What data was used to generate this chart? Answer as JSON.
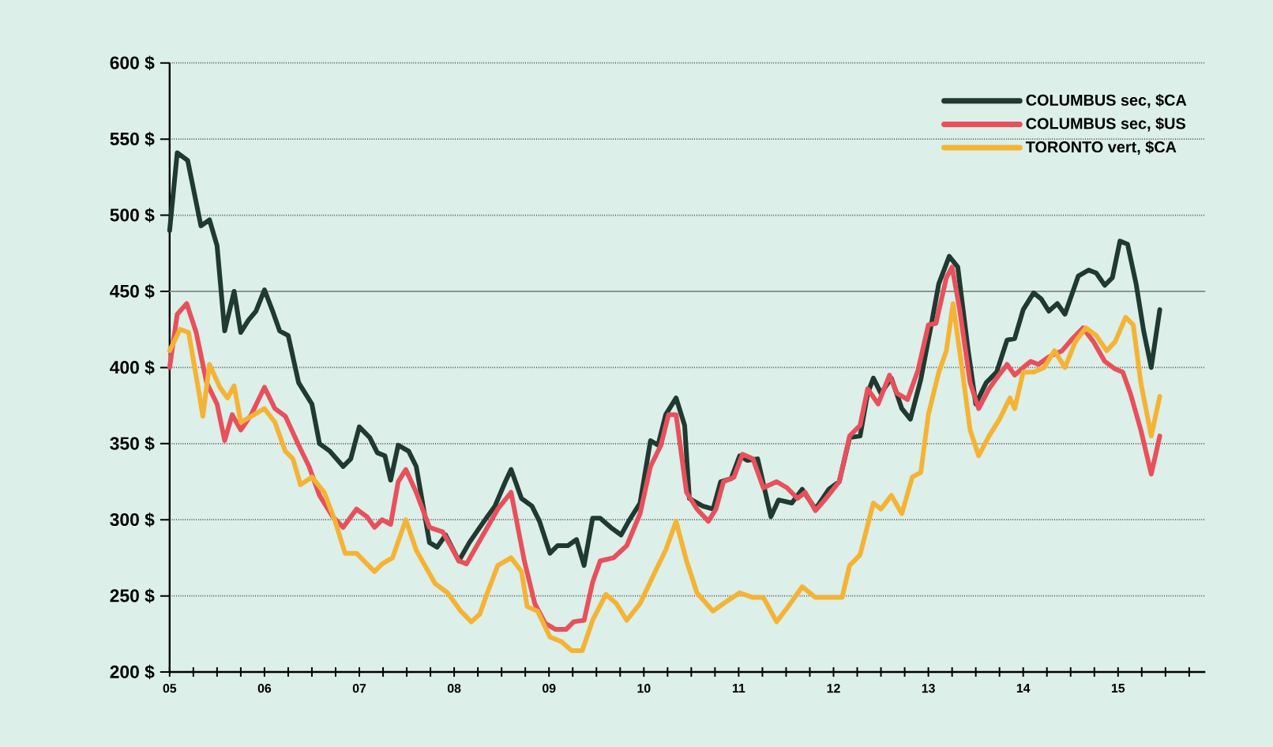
{
  "chart_data": {
    "type": "line",
    "xlim": [
      2005,
      2015.92
    ],
    "xticks": [
      {
        "value": 2005,
        "label": "05"
      },
      {
        "value": 2005.25,
        "label": null
      },
      {
        "value": 2005.5,
        "label": null
      },
      {
        "value": 2005.75,
        "label": null
      },
      {
        "value": 2006,
        "label": "06"
      },
      {
        "value": 2006.25,
        "label": null
      },
      {
        "value": 2006.5,
        "label": null
      },
      {
        "value": 2006.75,
        "label": null
      },
      {
        "value": 2007,
        "label": "07"
      },
      {
        "value": 2007.25,
        "label": null
      },
      {
        "value": 2007.5,
        "label": null
      },
      {
        "value": 2007.75,
        "label": null
      },
      {
        "value": 2008,
        "label": "08"
      },
      {
        "value": 2008.25,
        "label": null
      },
      {
        "value": 2008.5,
        "label": null
      },
      {
        "value": 2008.75,
        "label": null
      },
      {
        "value": 2009,
        "label": "09"
      },
      {
        "value": 2009.25,
        "label": null
      },
      {
        "value": 2009.5,
        "label": null
      },
      {
        "value": 2009.75,
        "label": null
      },
      {
        "value": 2010,
        "label": "10"
      },
      {
        "value": 2010.25,
        "label": null
      },
      {
        "value": 2010.5,
        "label": null
      },
      {
        "value": 2010.75,
        "label": null
      },
      {
        "value": 2011,
        "label": "11"
      },
      {
        "value": 2011.25,
        "label": null
      },
      {
        "value": 2011.5,
        "label": null
      },
      {
        "value": 2011.75,
        "label": null
      },
      {
        "value": 2012,
        "label": "12"
      },
      {
        "value": 2012.25,
        "label": null
      },
      {
        "value": 2012.5,
        "label": null
      },
      {
        "value": 2012.75,
        "label": null
      },
      {
        "value": 2013,
        "label": "13"
      },
      {
        "value": 2013.25,
        "label": null
      },
      {
        "value": 2013.5,
        "label": null
      },
      {
        "value": 2013.75,
        "label": null
      },
      {
        "value": 2014,
        "label": "14"
      },
      {
        "value": 2014.25,
        "label": null
      },
      {
        "value": 2014.5,
        "label": null
      },
      {
        "value": 2014.75,
        "label": null
      },
      {
        "value": 2015,
        "label": "15"
      },
      {
        "value": 2015.25,
        "label": null
      },
      {
        "value": 2015.5,
        "label": null
      },
      {
        "value": 2015.75,
        "label": null
      }
    ],
    "ylim": [
      200,
      600
    ],
    "yticks": [
      {
        "value": 200,
        "label": "200 $"
      },
      {
        "value": 250,
        "label": "250 $"
      },
      {
        "value": 300,
        "label": "300 $"
      },
      {
        "value": 350,
        "label": "350 $"
      },
      {
        "value": 400,
        "label": "400 $"
      },
      {
        "value": 450,
        "label": "450 $"
      },
      {
        "value": 500,
        "label": "500 $"
      },
      {
        "value": 550,
        "label": "550 $"
      },
      {
        "value": 600,
        "label": "600 $"
      }
    ],
    "grid": "y",
    "legend": "top right",
    "ref_lines": [
      {
        "axis": "y",
        "value": 450,
        "color": "#8a9590"
      }
    ],
    "series": [
      {
        "name": "COLUMBUS sec, $CA",
        "color": "#1f3a30",
        "x": [
          2005.0,
          2005.08,
          2005.19,
          2005.33,
          2005.42,
          2005.5,
          2005.58,
          2005.68,
          2005.75,
          2005.83,
          2005.91,
          2006.0,
          2006.08,
          2006.16,
          2006.25,
          2006.36,
          2006.5,
          2006.58,
          2006.69,
          2006.83,
          2006.91,
          2007.0,
          2007.11,
          2007.19,
          2007.27,
          2007.33,
          2007.41,
          2007.52,
          2007.6,
          2007.74,
          2007.82,
          2007.91,
          2008.05,
          2008.16,
          2008.27,
          2008.35,
          2008.43,
          2008.54,
          2008.6,
          2008.71,
          2008.82,
          2008.9,
          2009.01,
          2009.09,
          2009.2,
          2009.29,
          2009.37,
          2009.46,
          2009.54,
          2009.65,
          2009.76,
          2009.84,
          2009.96,
          2010.07,
          2010.15,
          2010.23,
          2010.34,
          2010.43,
          2010.48,
          2010.62,
          2010.73,
          2010.81,
          2010.92,
          2011.01,
          2011.09,
          2011.2,
          2011.34,
          2011.42,
          2011.56,
          2011.67,
          2011.81,
          2011.95,
          2012.06,
          2012.17,
          2012.28,
          2012.36,
          2012.42,
          2012.5,
          2012.61,
          2012.72,
          2012.81,
          2012.92,
          2013.03,
          2013.11,
          2013.22,
          2013.31,
          2013.42,
          2013.5,
          2013.61,
          2013.72,
          2013.83,
          2013.91,
          2014.0,
          2014.11,
          2014.19,
          2014.27,
          2014.36,
          2014.44,
          2014.58,
          2014.69,
          2014.77,
          2014.86,
          2014.94,
          2015.02,
          2015.1,
          2015.19,
          2015.27,
          2015.35,
          2015.44
        ],
        "values": [
          490,
          541,
          536,
          493,
          497,
          480,
          424,
          450,
          423,
          431,
          437,
          451,
          438,
          424,
          421,
          390,
          376,
          350,
          345,
          335,
          340,
          361,
          354,
          344,
          342,
          326,
          349,
          345,
          335,
          285,
          282,
          290,
          273,
          285,
          295,
          302,
          309,
          325,
          333,
          314,
          309,
          299,
          278,
          283,
          283,
          287,
          270,
          301,
          301,
          295,
          290,
          299,
          311,
          352,
          349,
          369,
          380,
          362,
          314,
          309,
          307,
          325,
          327,
          342,
          339,
          340,
          302,
          313,
          311,
          320,
          307,
          320,
          325,
          354,
          355,
          383,
          393,
          383,
          393,
          373,
          366,
          392,
          428,
          455,
          473,
          466,
          411,
          376,
          390,
          397,
          418,
          419,
          438,
          449,
          445,
          437,
          442,
          435,
          460,
          464,
          462,
          454,
          459,
          483,
          481,
          455,
          424,
          400,
          438
        ]
      },
      {
        "name": "COLUMBUS sec, $US",
        "color": "#e8505b",
        "x": [
          2005.0,
          2005.08,
          2005.18,
          2005.28,
          2005.39,
          2005.5,
          2005.58,
          2005.66,
          2005.75,
          2005.86,
          2006.0,
          2006.11,
          2006.22,
          2006.36,
          2006.47,
          2006.58,
          2006.72,
          2006.83,
          2006.97,
          2007.08,
          2007.16,
          2007.24,
          2007.33,
          2007.41,
          2007.49,
          2007.6,
          2007.74,
          2007.88,
          2008.05,
          2008.13,
          2008.24,
          2008.35,
          2008.46,
          2008.6,
          2008.74,
          2008.85,
          2008.96,
          2009.07,
          2009.18,
          2009.26,
          2009.37,
          2009.46,
          2009.54,
          2009.68,
          2009.82,
          2009.96,
          2010.07,
          2010.18,
          2010.26,
          2010.34,
          2010.45,
          2010.56,
          2010.68,
          2010.76,
          2010.84,
          2010.95,
          2011.04,
          2011.15,
          2011.26,
          2011.4,
          2011.51,
          2011.62,
          2011.7,
          2011.81,
          2011.92,
          2012.06,
          2012.17,
          2012.28,
          2012.36,
          2012.47,
          2012.59,
          2012.67,
          2012.78,
          2012.89,
          2013.0,
          2013.08,
          2013.19,
          2013.25,
          2013.33,
          2013.44,
          2013.53,
          2013.64,
          2013.72,
          2013.83,
          2013.91,
          2014.0,
          2014.08,
          2014.16,
          2014.27,
          2014.41,
          2014.52,
          2014.63,
          2014.74,
          2014.86,
          2014.97,
          2015.05,
          2015.13,
          2015.24,
          2015.35,
          2015.44
        ],
        "values": [
          400,
          435,
          442,
          423,
          390,
          376,
          352,
          369,
          359,
          369,
          387,
          373,
          368,
          349,
          335,
          316,
          302,
          295,
          307,
          302,
          295,
          300,
          297,
          325,
          333,
          318,
          295,
          292,
          273,
          271,
          283,
          295,
          307,
          318,
          273,
          245,
          232,
          228,
          228,
          233,
          234,
          259,
          273,
          275,
          283,
          304,
          335,
          349,
          369,
          369,
          318,
          307,
          299,
          307,
          325,
          328,
          343,
          340,
          321,
          325,
          321,
          314,
          318,
          306,
          314,
          325,
          355,
          362,
          386,
          376,
          395,
          383,
          379,
          398,
          428,
          429,
          459,
          466,
          438,
          390,
          373,
          386,
          393,
          402,
          395,
          400,
          404,
          402,
          407,
          411,
          419,
          426,
          417,
          404,
          399,
          397,
          383,
          359,
          330,
          355
        ]
      },
      {
        "name": "TORONTO vert, $CA",
        "color": "#f5b335",
        "x": [
          2005.0,
          2005.11,
          2005.2,
          2005.3,
          2005.35,
          2005.42,
          2005.53,
          2005.61,
          2005.68,
          2005.75,
          2005.89,
          2006.0,
          2006.11,
          2006.22,
          2006.3,
          2006.38,
          2006.5,
          2006.63,
          2006.74,
          2006.85,
          2006.97,
          2007.08,
          2007.16,
          2007.24,
          2007.35,
          2007.49,
          2007.6,
          2007.8,
          2007.93,
          2008.07,
          2008.18,
          2008.27,
          2008.35,
          2008.46,
          2008.6,
          2008.71,
          2008.77,
          2008.88,
          2009.01,
          2009.13,
          2009.24,
          2009.35,
          2009.46,
          2009.6,
          2009.71,
          2009.82,
          2009.96,
          2010.12,
          2010.23,
          2010.34,
          2010.45,
          2010.56,
          2010.73,
          2010.84,
          2011.01,
          2011.15,
          2011.26,
          2011.4,
          2011.51,
          2011.67,
          2011.81,
          2011.92,
          2012.09,
          2012.17,
          2012.28,
          2012.42,
          2012.5,
          2012.61,
          2012.72,
          2012.83,
          2012.92,
          2013.0,
          2013.11,
          2013.19,
          2013.26,
          2013.36,
          2013.44,
          2013.53,
          2013.64,
          2013.75,
          2013.86,
          2013.91,
          2014.0,
          2014.11,
          2014.22,
          2014.33,
          2014.44,
          2014.55,
          2014.66,
          2014.77,
          2014.88,
          2014.97,
          2015.08,
          2015.16,
          2015.24,
          2015.35,
          2015.44
        ],
        "values": [
          411,
          425,
          423,
          387,
          368,
          402,
          387,
          380,
          388,
          364,
          369,
          373,
          364,
          345,
          340,
          323,
          328,
          318,
          300,
          278,
          278,
          271,
          266,
          271,
          275,
          300,
          280,
          258,
          252,
          240,
          233,
          238,
          252,
          270,
          275,
          266,
          243,
          240,
          223,
          220,
          214,
          214,
          234,
          251,
          245,
          234,
          245,
          266,
          280,
          299,
          273,
          252,
          240,
          245,
          252,
          249,
          249,
          233,
          242,
          256,
          249,
          249,
          249,
          270,
          277,
          311,
          307,
          316,
          304,
          328,
          331,
          369,
          397,
          411,
          442,
          397,
          359,
          342,
          355,
          366,
          380,
          373,
          397,
          397,
          400,
          411,
          400,
          417,
          426,
          421,
          411,
          417,
          433,
          428,
          390,
          355,
          381
        ]
      }
    ]
  }
}
